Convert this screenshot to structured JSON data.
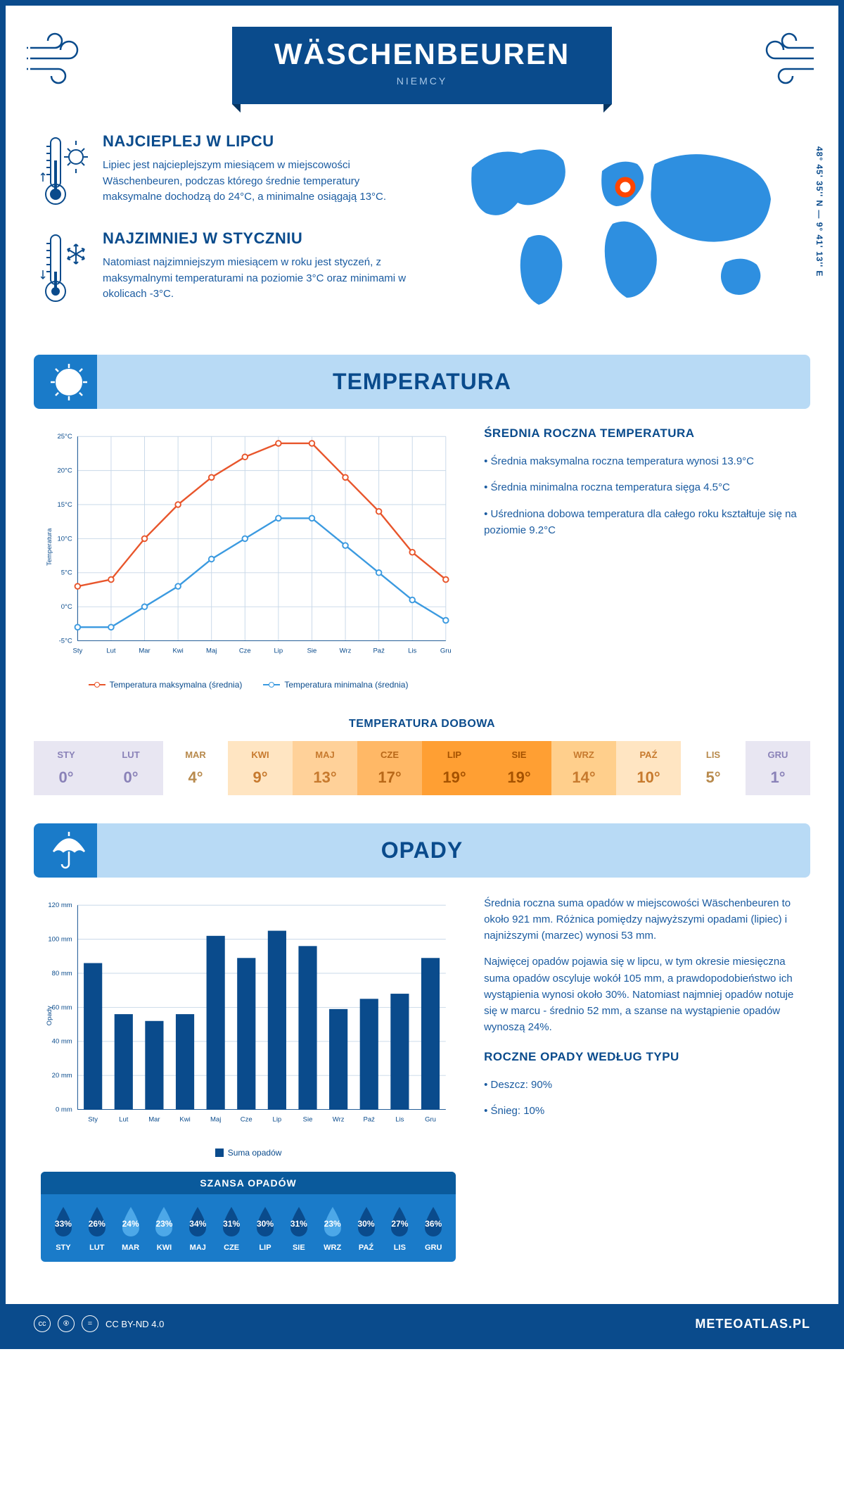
{
  "header": {
    "city": "WÄSCHENBEUREN",
    "country": "NIEMCY",
    "coords": "48° 45' 35'' N — 9° 41' 13'' E"
  },
  "facts": {
    "warmest": {
      "title": "NAJCIEPLEJ W LIPCU",
      "text": "Lipiec jest najcieplejszym miesiącem w miejscowości Wäschenbeuren, podczas którego średnie temperatury maksymalne dochodzą do 24°C, a minimalne osiągają 13°C."
    },
    "coldest": {
      "title": "NAJZIMNIEJ W STYCZNIU",
      "text": "Natomiast najzimniejszym miesiącem w roku jest styczeń, z maksymalnymi temperaturami na poziomie 3°C oraz minimami w okolicach -3°C."
    }
  },
  "temperature": {
    "section_title": "TEMPERATURA",
    "side_title": "ŚREDNIA ROCZNA TEMPERATURA",
    "bullets": [
      "• Średnia maksymalna roczna temperatura wynosi 13.9°C",
      "• Średnia minimalna roczna temperatura sięga 4.5°C",
      "• Uśredniona dobowa temperatura dla całego roku kształtuje się na poziomie 9.2°C"
    ],
    "months": [
      "Sty",
      "Lut",
      "Mar",
      "Kwi",
      "Maj",
      "Cze",
      "Lip",
      "Sie",
      "Wrz",
      "Paź",
      "Lis",
      "Gru"
    ],
    "max_series": [
      3,
      4,
      10,
      15,
      19,
      22,
      24,
      24,
      19,
      14,
      8,
      4
    ],
    "min_series": [
      -3,
      -3,
      0,
      3,
      7,
      10,
      13,
      13,
      9,
      5,
      1,
      -2
    ],
    "max_color": "#e8552b",
    "min_color": "#3b9ae0",
    "y_min": -5,
    "y_max": 25,
    "y_step": 5,
    "y_label": "Temperatura",
    "legend_max": "Temperatura maksymalna (średnia)",
    "legend_min": "Temperatura minimalna (średnia)"
  },
  "daily": {
    "title": "TEMPERATURA DOBOWA",
    "months": [
      "STY",
      "LUT",
      "MAR",
      "KWI",
      "MAJ",
      "CZE",
      "LIP",
      "SIE",
      "WRZ",
      "PAŹ",
      "LIS",
      "GRU"
    ],
    "values": [
      "0°",
      "0°",
      "4°",
      "9°",
      "13°",
      "17°",
      "19°",
      "19°",
      "14°",
      "10°",
      "5°",
      "1°"
    ],
    "bg_colors": [
      "#e8e6f2",
      "#e8e6f2",
      "#ffffff",
      "#ffe5c2",
      "#ffd199",
      "#ffb866",
      "#ff9f33",
      "#ff9f33",
      "#ffcf8c",
      "#ffe5c2",
      "#ffffff",
      "#e8e6f2"
    ],
    "text_colors": [
      "#8a82b8",
      "#8a82b8",
      "#b88a4d",
      "#c77a2e",
      "#c77a2e",
      "#b86818",
      "#a55200",
      "#a55200",
      "#c77a2e",
      "#c77a2e",
      "#b88a4d",
      "#8a82b8"
    ]
  },
  "precipitation": {
    "section_title": "OPADY",
    "paragraphs": [
      "Średnia roczna suma opadów w miejscowości Wäschenbeuren to około 921 mm. Różnica pomiędzy najwyższymi opadami (lipiec) i najniższymi (marzec) wynosi 53 mm.",
      "Najwięcej opadów pojawia się w lipcu, w tym okresie miesięczna suma opadów oscyluje wokół 105 mm, a prawdopodobieństwo ich wystąpienia wynosi około 30%. Natomiast najmniej opadów notuje się w marcu - średnio 52 mm, a szanse na wystąpienie opadów wynoszą 24%."
    ],
    "type_title": "ROCZNE OPADY WEDŁUG TYPU",
    "type_bullets": [
      "• Deszcz: 90%",
      "• Śnieg: 10%"
    ],
    "months": [
      "Sty",
      "Lut",
      "Mar",
      "Kwi",
      "Maj",
      "Cze",
      "Lip",
      "Sie",
      "Wrz",
      "Paź",
      "Lis",
      "Gru"
    ],
    "values": [
      86,
      56,
      52,
      56,
      102,
      89,
      105,
      96,
      59,
      65,
      68,
      89
    ],
    "y_max": 120,
    "y_step": 20,
    "y_label": "Opady",
    "bar_color": "#0a4b8c",
    "legend": "Suma opadów"
  },
  "chance": {
    "title": "SZANSA OPADÓW",
    "months": [
      "STY",
      "LUT",
      "MAR",
      "KWI",
      "MAJ",
      "CZE",
      "LIP",
      "SIE",
      "WRZ",
      "PAŹ",
      "LIS",
      "GRU"
    ],
    "values": [
      "33%",
      "26%",
      "24%",
      "23%",
      "34%",
      "31%",
      "30%",
      "31%",
      "23%",
      "30%",
      "27%",
      "36%"
    ],
    "drop_colors": [
      "#0a4b8c",
      "#0a4b8c",
      "#4da8e8",
      "#4da8e8",
      "#0a4b8c",
      "#0a4b8c",
      "#0a4b8c",
      "#0a4b8c",
      "#4da8e8",
      "#0a4b8c",
      "#0a4b8c",
      "#0a4b8c"
    ]
  },
  "footer": {
    "license": "CC BY-ND 4.0",
    "site": "METEOATLAS.PL"
  }
}
